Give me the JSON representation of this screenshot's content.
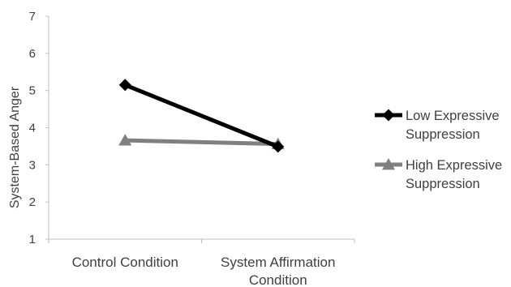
{
  "chart_data": {
    "type": "line",
    "categories": [
      "Control Condition",
      "System Affirmation Condition"
    ],
    "category_lines": [
      [
        "Control Condition"
      ],
      [
        "System Affirmation",
        "Condition"
      ]
    ],
    "ylabel": "System-Based Anger",
    "xlabel": "",
    "ylim": [
      1,
      7
    ],
    "yticks": [
      1,
      2,
      3,
      4,
      5,
      6,
      7
    ],
    "grid": false,
    "legend_position": "right",
    "series": [
      {
        "name": "Low Expressive Suppression",
        "name_lines": [
          "Low Expressive",
          "Suppression"
        ],
        "values": [
          5.15,
          3.49
        ],
        "color": "#000000",
        "marker": "diamond"
      },
      {
        "name": "High Expressive Suppression",
        "name_lines": [
          "High Expressive",
          "Suppression"
        ],
        "values": [
          3.66,
          3.56
        ],
        "color": "#808080",
        "marker": "triangle"
      }
    ]
  }
}
